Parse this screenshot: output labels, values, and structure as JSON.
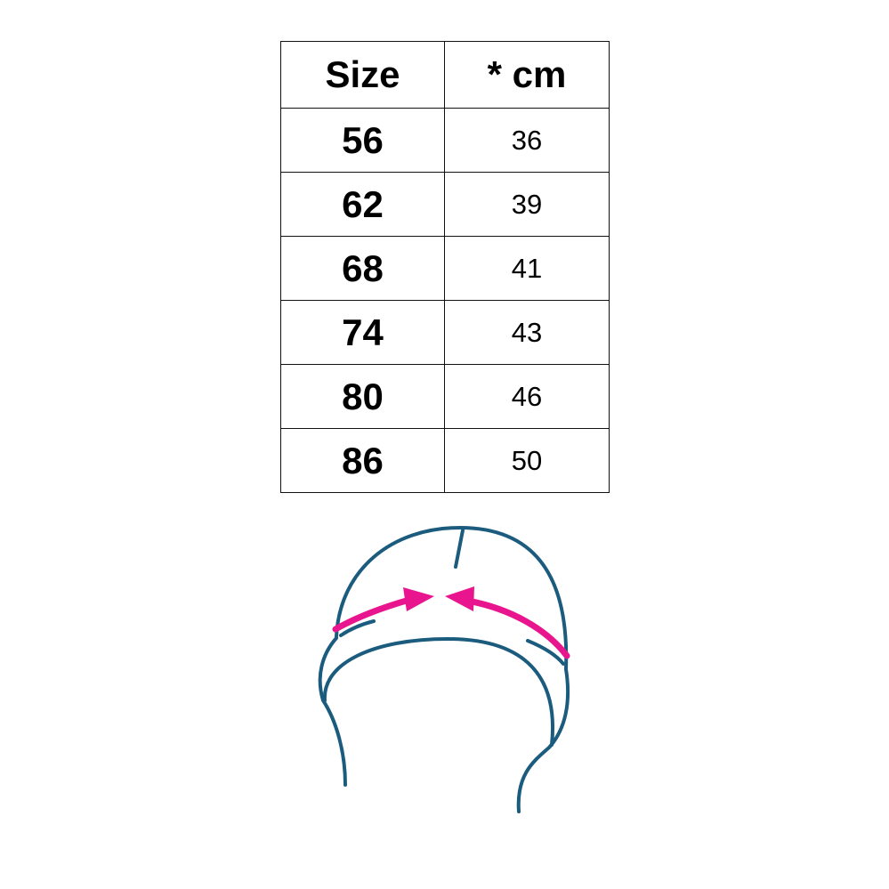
{
  "size_table": {
    "headers": [
      "Size",
      "* cm"
    ],
    "rows": [
      {
        "size": "56",
        "cm": "36"
      },
      {
        "size": "62",
        "cm": "39"
      },
      {
        "size": "68",
        "cm": "41"
      },
      {
        "size": "74",
        "cm": "43"
      },
      {
        "size": "80",
        "cm": "46"
      },
      {
        "size": "86",
        "cm": "50"
      }
    ]
  },
  "illustration": {
    "subject": "hat-circumference-measurement",
    "outline_color": "#1b5c7e",
    "arrow_color": "#e8158f"
  }
}
